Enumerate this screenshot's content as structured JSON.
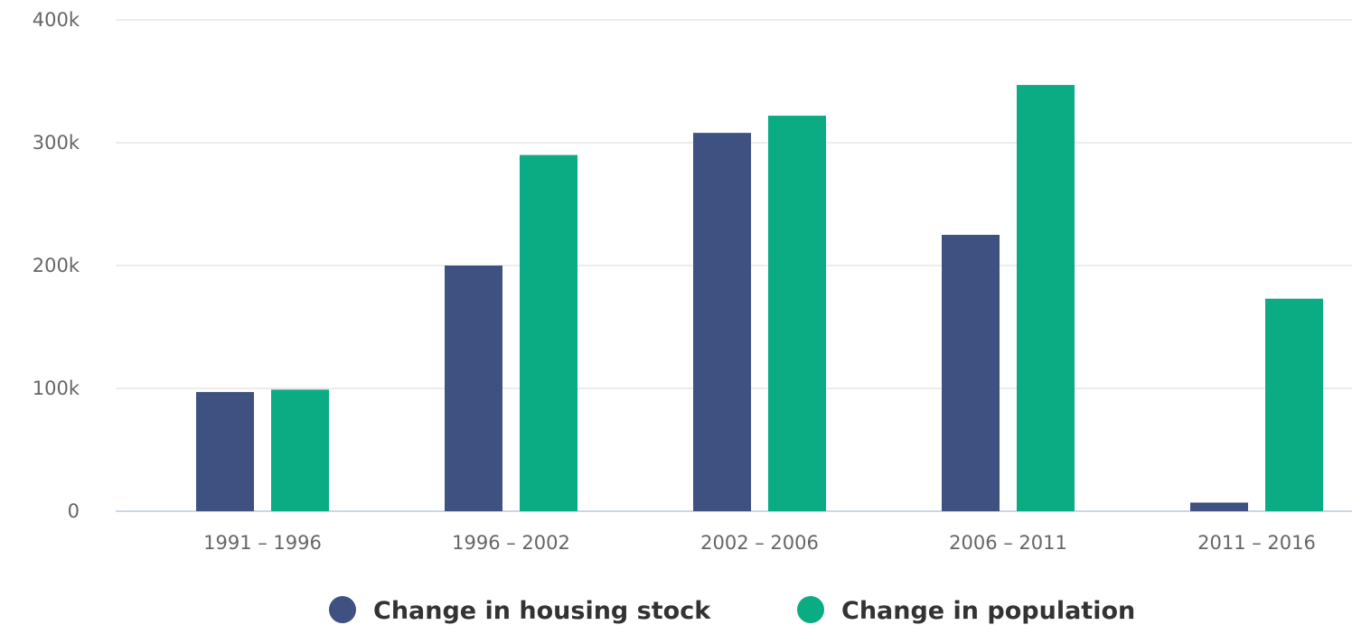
{
  "chart_data": {
    "type": "bar",
    "title": "",
    "xlabel": "",
    "ylabel": "",
    "categories": [
      "1991 – 1996",
      "1996 – 2002",
      "2002 – 2006",
      "2006 – 2011",
      "2011 – 2016"
    ],
    "series": [
      {
        "name": "Change in housing stock",
        "color": "#3f5180",
        "values": [
          97000,
          200000,
          308000,
          225000,
          7000
        ]
      },
      {
        "name": "Change in population",
        "color": "#0bab84",
        "values": [
          99000,
          290000,
          322000,
          347000,
          173000
        ]
      }
    ],
    "ylim": [
      0,
      400000
    ],
    "yticks": [
      {
        "value": 0,
        "label": "0"
      },
      {
        "value": 100000,
        "label": "100k"
      },
      {
        "value": 200000,
        "label": "200k"
      },
      {
        "value": 300000,
        "label": "300k"
      },
      {
        "value": 400000,
        "label": "400k"
      }
    ],
    "grid": true,
    "legend_position": "bottom-center"
  }
}
